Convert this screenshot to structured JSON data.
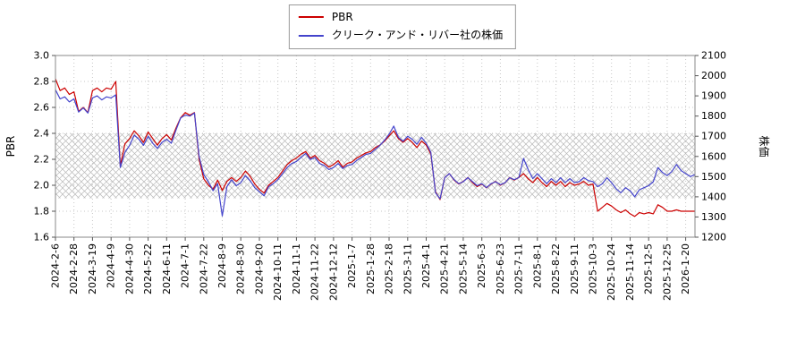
{
  "legend": {
    "items": [
      {
        "label": "PBR",
        "color": "#cc0000"
      },
      {
        "label": "クリーク・アンド・リバー社の株価",
        "color": "#4444cc"
      }
    ]
  },
  "chart_data": {
    "type": "line",
    "title": "",
    "grid": true,
    "points_per_tick": 4,
    "x_tick_labels": [
      "2024-2-6",
      "2024-2-28",
      "2024-3-19",
      "2024-4-9",
      "2024-4-30",
      "2024-5-22",
      "2024-6-11",
      "2024-7-1",
      "2024-7-22",
      "2024-8-9",
      "2024-8-30",
      "2024-9-20",
      "2024-10-11",
      "2024-11-1",
      "2024-11-22",
      "2024-12-12",
      "2025-1-7",
      "2025-1-28",
      "2025-2-18",
      "2025-3-11",
      "2025-4-1",
      "2025-4-21",
      "2025-5-14",
      "2025-6-3",
      "2025-6-23",
      "2025-7-11",
      "2025-8-1",
      "2025-8-22",
      "2025-9-11",
      "2025-10-3",
      "2025-10-24",
      "2025-11-14",
      "2025-12-5",
      "2025-12-25",
      "2026-1-20"
    ],
    "left_axis": {
      "label": "PBR",
      "min": 1.6,
      "max": 3.0,
      "ticks": [
        1.6,
        1.8,
        2.0,
        2.2,
        2.4,
        2.6,
        2.8,
        3.0
      ]
    },
    "right_axis": {
      "label": "株価",
      "min": 1200,
      "max": 2100,
      "ticks": [
        1200,
        1300,
        1400,
        1500,
        1600,
        1700,
        1800,
        1900,
        2000,
        2100
      ]
    },
    "hatch_band": {
      "axis": "left",
      "from": 1.9,
      "to": 2.4,
      "color": "#b8b8b8"
    },
    "series": [
      {
        "name": "PBR",
        "axis": "left",
        "color": "#cc0000",
        "values": [
          2.82,
          2.73,
          2.75,
          2.7,
          2.72,
          2.57,
          2.6,
          2.56,
          2.73,
          2.75,
          2.72,
          2.75,
          2.74,
          2.8,
          2.15,
          2.32,
          2.36,
          2.42,
          2.38,
          2.33,
          2.41,
          2.36,
          2.31,
          2.36,
          2.39,
          2.35,
          2.44,
          2.52,
          2.56,
          2.54,
          2.56,
          2.2,
          2.05,
          2.0,
          1.97,
          2.04,
          1.96,
          2.03,
          2.06,
          2.03,
          2.06,
          2.11,
          2.07,
          2.01,
          1.97,
          1.94,
          2.0,
          2.03,
          2.06,
          2.11,
          2.16,
          2.19,
          2.21,
          2.24,
          2.26,
          2.21,
          2.23,
          2.19,
          2.17,
          2.14,
          2.16,
          2.19,
          2.14,
          2.17,
          2.18,
          2.21,
          2.23,
          2.25,
          2.26,
          2.29,
          2.31,
          2.34,
          2.38,
          2.42,
          2.36,
          2.33,
          2.36,
          2.33,
          2.29,
          2.34,
          2.31,
          2.24,
          1.95,
          1.89,
          2.06,
          2.09,
          2.04,
          2.01,
          2.03,
          2.06,
          2.02,
          1.99,
          2.01,
          1.98,
          2.01,
          2.03,
          2.0,
          2.02,
          2.06,
          2.04,
          2.06,
          2.09,
          2.05,
          2.02,
          2.06,
          2.02,
          1.99,
          2.03,
          2.0,
          2.03,
          1.99,
          2.02,
          2.0,
          2.01,
          2.03,
          2.0,
          2.01,
          1.8,
          1.83,
          1.86,
          1.84,
          1.81,
          1.79,
          1.81,
          1.78,
          1.76,
          1.79,
          1.78,
          1.79,
          1.78,
          1.85,
          1.83,
          1.8,
          1.8,
          1.81,
          1.8,
          1.8,
          1.8,
          1.8
        ]
      },
      {
        "name": "クリーク・アンド・リバー社の株価",
        "axis": "right",
        "color": "#4444cc",
        "values": [
          1930,
          1885,
          1895,
          1870,
          1885,
          1820,
          1840,
          1815,
          1890,
          1900,
          1880,
          1895,
          1890,
          1905,
          1545,
          1620,
          1655,
          1705,
          1685,
          1655,
          1700,
          1665,
          1640,
          1670,
          1685,
          1665,
          1730,
          1790,
          1805,
          1800,
          1815,
          1600,
          1510,
          1475,
          1430,
          1465,
          1305,
          1450,
          1485,
          1455,
          1470,
          1505,
          1480,
          1445,
          1425,
          1405,
          1450,
          1465,
          1485,
          1515,
          1545,
          1565,
          1575,
          1595,
          1615,
          1585,
          1595,
          1565,
          1555,
          1535,
          1545,
          1565,
          1540,
          1555,
          1560,
          1580,
          1595,
          1610,
          1615,
          1635,
          1655,
          1680,
          1710,
          1750,
          1695,
          1675,
          1700,
          1685,
          1660,
          1695,
          1665,
          1620,
          1420,
          1390,
          1495,
          1515,
          1485,
          1465,
          1475,
          1495,
          1475,
          1455,
          1465,
          1445,
          1465,
          1475,
          1460,
          1470,
          1495,
          1485,
          1495,
          1590,
          1535,
          1490,
          1515,
          1490,
          1465,
          1490,
          1470,
          1495,
          1470,
          1490,
          1470,
          1475,
          1495,
          1480,
          1475,
          1450,
          1465,
          1495,
          1470,
          1440,
          1420,
          1445,
          1430,
          1400,
          1435,
          1445,
          1455,
          1475,
          1545,
          1520,
          1505,
          1525,
          1560,
          1530,
          1515,
          1500,
          1510
        ]
      }
    ]
  }
}
